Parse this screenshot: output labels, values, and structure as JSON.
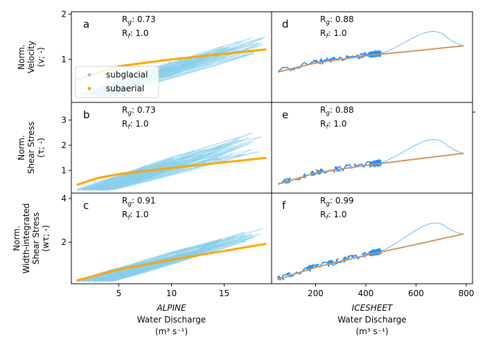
{
  "colors": {
    "subglacial_alpine": "#87ceeb",
    "subaerial_alpine": "#ffa500",
    "subglacial_icesheet": "#1e90ff",
    "subaerial_icesheet": "#d2935a"
  },
  "legend": {
    "items": [
      {
        "label": "subglacial"
      },
      {
        "label": "subaerial"
      }
    ],
    "placement": "lower-left of panel a"
  },
  "columns": [
    {
      "title_italic": "ALPINE",
      "xlabel_line1": "Water Discharge",
      "xlabel_line2": "(m³ s⁻¹)"
    },
    {
      "title_italic": "ICESHEET",
      "xlabel_line1": "Water Discharge",
      "xlabel_line2": "(m³ s⁻¹)"
    }
  ],
  "rows": [
    {
      "ylabel_lines": [
        "Norm.",
        "Velocity",
        "(v; -)"
      ]
    },
    {
      "ylabel_lines": [
        "Norm.",
        "Shear Stress",
        "(τ; -)"
      ]
    },
    {
      "ylabel_lines": [
        "Norm.",
        "Width-integrated",
        "Shear Stress",
        "(wτ; -)"
      ]
    }
  ],
  "chart_data": [
    {
      "panel": "a",
      "type": "scatter",
      "R_g": "0.73",
      "R_f": "1.0",
      "x_range": [
        0.5,
        19.5
      ],
      "y_range": [
        0.05,
        2.05
      ],
      "xticks": [
        5,
        10,
        15
      ],
      "yticks": [
        1,
        2
      ],
      "sub_glacial_trend": [
        [
          1.0,
          0.3
        ],
        [
          19.0,
          1.45
        ]
      ],
      "sub_glacial_band_low": [
        [
          1.0,
          0.18
        ],
        [
          19.0,
          1.0
        ]
      ],
      "subaerial_curve": [
        [
          1.0,
          0.55
        ],
        [
          5,
          0.85
        ],
        [
          10,
          1.0
        ],
        [
          15,
          1.12
        ],
        [
          19.0,
          1.22
        ]
      ]
    },
    {
      "panel": "b",
      "type": "scatter",
      "R_g": "0.73",
      "R_f": "1.0",
      "x_range": [
        0.5,
        19.5
      ],
      "y_range": [
        0.1,
        3.7
      ],
      "xticks": [
        5,
        10,
        15
      ],
      "yticks": [
        1,
        2,
        3
      ],
      "sub_glacial_trend": [
        [
          1.0,
          0.3
        ],
        [
          19.0,
          2.4
        ]
      ],
      "sub_glacial_band_low": [
        [
          1.0,
          0.2
        ],
        [
          19.0,
          1.4
        ]
      ],
      "subaerial_curve": [
        [
          1.0,
          0.42
        ],
        [
          3,
          0.7
        ],
        [
          5,
          0.85
        ],
        [
          10,
          1.1
        ],
        [
          15,
          1.32
        ],
        [
          19.0,
          1.5
        ]
      ]
    },
    {
      "panel": "c",
      "type": "scatter",
      "R_g": "0.91",
      "R_f": "1.0",
      "x_range": [
        0.5,
        19.5
      ],
      "y_range": [
        0.1,
        4.25
      ],
      "xticks": [
        5,
        10,
        15
      ],
      "yticks": [
        2,
        4
      ],
      "sub_glacial_trend": [
        [
          1.0,
          0.25
        ],
        [
          19.0,
          2.6
        ]
      ],
      "sub_glacial_band_low": [
        [
          1.0,
          0.2
        ],
        [
          19.0,
          2.0
        ]
      ],
      "subaerial_curve": [
        [
          1.0,
          0.25
        ],
        [
          5,
          0.75
        ],
        [
          10,
          1.2
        ],
        [
          15,
          1.6
        ],
        [
          19.0,
          1.93
        ]
      ]
    },
    {
      "panel": "d",
      "type": "scatter",
      "R_g": "0.88",
      "R_f": "1.0",
      "x_range": [
        25,
        825
      ],
      "y_range": [
        0.05,
        2.05
      ],
      "xticks": [
        200,
        400,
        600,
        800
      ],
      "yticks": [
        1,
        2
      ],
      "subaerial_curve": [
        [
          50,
          0.72
        ],
        [
          200,
          0.92
        ],
        [
          400,
          1.08
        ],
        [
          600,
          1.19
        ],
        [
          790,
          1.3
        ]
      ]
    },
    {
      "panel": "e",
      "type": "scatter",
      "R_g": "0.88",
      "R_f": "1.0",
      "x_range": [
        25,
        825
      ],
      "y_range": [
        0.1,
        3.7
      ],
      "xticks": [
        200,
        400,
        600,
        800
      ],
      "yticks": [
        1,
        2,
        3
      ],
      "subaerial_curve": [
        [
          50,
          0.45
        ],
        [
          200,
          0.9
        ],
        [
          400,
          1.2
        ],
        [
          600,
          1.45
        ],
        [
          790,
          1.68
        ]
      ]
    },
    {
      "panel": "f",
      "type": "scatter",
      "R_g": "0.99",
      "R_f": "1.0",
      "x_range": [
        25,
        825
      ],
      "y_range": [
        0.1,
        4.25
      ],
      "xticks": [
        200,
        400,
        600,
        800
      ],
      "yticks": [
        2,
        4
      ],
      "subaerial_curve": [
        [
          50,
          0.3
        ],
        [
          200,
          0.85
        ],
        [
          400,
          1.4
        ],
        [
          600,
          1.9
        ],
        [
          790,
          2.38
        ]
      ]
    }
  ]
}
